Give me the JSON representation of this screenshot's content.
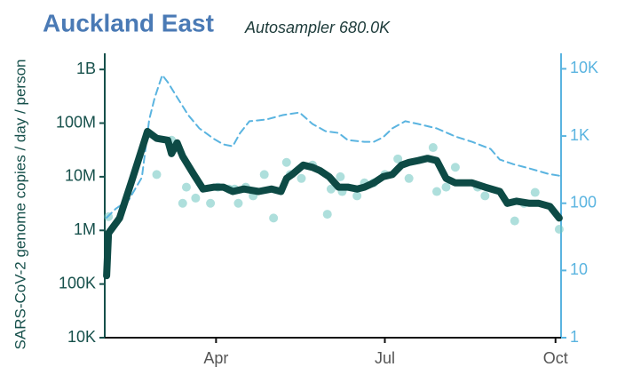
{
  "chart_data": {
    "type": "line",
    "title": "Auckland East",
    "subtitle": "Autosampler 680.0K",
    "y_label": "SARS-CoV-2 genome copies  / day / person",
    "xlim": [
      31,
      277
    ],
    "xticks": [
      {
        "value": 91,
        "label": "Apr"
      },
      {
        "value": 182,
        "label": "Jul"
      },
      {
        "value": 274,
        "label": "Oct"
      }
    ],
    "ylim": [
      10000,
      2000000000
    ],
    "yscale": "log",
    "yticks": [
      {
        "value": 1000000000,
        "label": "1B"
      },
      {
        "value": 100000000,
        "label": "100M"
      },
      {
        "value": 10000000,
        "label": "10M"
      },
      {
        "value": 1000000,
        "label": "1M"
      },
      {
        "value": 100000,
        "label": "100K"
      },
      {
        "value": 10000,
        "label": "10K"
      }
    ],
    "y_color": "#16504b",
    "y2lim": [
      1,
      17000
    ],
    "y2scale": "log",
    "y2ticks": [
      {
        "value": 10000,
        "label": "10K"
      },
      {
        "value": 1000,
        "label": "1K"
      },
      100,
      10,
      1
    ],
    "y2_color": "#5ab4e0",
    "series": [
      {
        "type": "scatter",
        "color": "#6cc4c0",
        "axis": "y",
        "x": [
          33,
          59,
          54,
          67,
          73,
          75,
          80,
          88,
          92,
          98,
          101,
          103,
          107,
          111,
          117,
          122,
          129,
          131,
          137,
          143,
          151,
          153,
          158,
          159,
          167,
          171,
          176,
          182,
          189,
          195,
          208,
          210,
          215,
          220,
          232,
          236,
          252,
          257,
          263,
          276
        ],
        "values": [
          1800000,
          11000000,
          62000000,
          48000000,
          3200000,
          6400000,
          4000000,
          3200000,
          6400000,
          5900000,
          5900000,
          3200000,
          6400000,
          4400000,
          11000000,
          1700000,
          18500000,
          11000000,
          9300000,
          16500000,
          2000000,
          5900000,
          10000000,
          5300000,
          4400000,
          7700000,
          7700000,
          11000000,
          21500000,
          9300000,
          35000000,
          5300000,
          6400000,
          15000000,
          6400000,
          4400000,
          1500000,
          3200000,
          5100000,
          1050000
        ]
      },
      {
        "type": "line",
        "style": "dashed",
        "color": "#5ab4e0",
        "axis": "y2",
        "x": [
          32,
          37,
          44,
          51,
          55,
          58,
          62,
          65,
          70,
          76,
          82,
          90,
          95,
          100,
          104,
          109,
          118,
          127,
          136,
          143,
          150,
          157,
          162,
          171,
          176,
          181,
          186,
          193,
          200,
          210,
          220,
          229,
          239,
          244,
          251,
          260,
          270,
          276
        ],
        "values": [
          61,
          83,
          113,
          242,
          1760,
          3770,
          8070,
          6320,
          3770,
          2050,
          1300,
          900,
          750,
          704,
          1110,
          1660,
          1760,
          2050,
          2240,
          1510,
          1180,
          1110,
          870,
          820,
          820,
          955,
          1300,
          1660,
          1510,
          1300,
          985,
          820,
          643,
          446,
          383,
          329,
          274,
          257
        ]
      },
      {
        "type": "line",
        "style": "solid",
        "color": "#0d4a45",
        "axis": "y",
        "x": [
          32,
          33,
          39,
          46,
          54,
          59,
          65,
          67,
          70,
          73,
          79,
          84,
          90,
          95,
          100,
          106,
          114,
          121,
          126,
          129,
          132,
          138,
          143,
          147,
          152,
          157,
          162,
          167,
          171,
          176,
          181,
          186,
          191,
          195,
          200,
          205,
          210,
          215,
          220,
          224,
          229,
          236,
          244,
          248,
          253,
          260,
          265,
          271,
          276
        ],
        "values": [
          143000,
          885000,
          1690000,
          9300000,
          70000000,
          52000000,
          48000000,
          27000000,
          43000000,
          24000000,
          11000000,
          5900000,
          6400000,
          6400000,
          5300000,
          5900000,
          5300000,
          5900000,
          5300000,
          9300000,
          11000000,
          16500000,
          15000000,
          13000000,
          10000000,
          6400000,
          6400000,
          5900000,
          6400000,
          7700000,
          10000000,
          11000000,
          16500000,
          18500000,
          20000000,
          22000000,
          20000000,
          9300000,
          7700000,
          7700000,
          7700000,
          6400000,
          5300000,
          3200000,
          3500000,
          3200000,
          3200000,
          2800000,
          1700000
        ]
      }
    ]
  }
}
